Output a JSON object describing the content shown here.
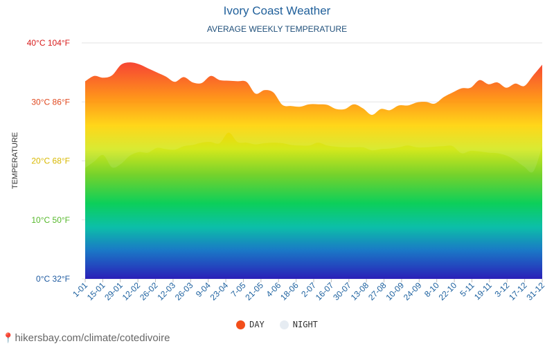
{
  "source_text": "hikersbay.com/climate/cotedivoire",
  "legend": {
    "day_label": "DAY",
    "night_label": "NIGHT"
  },
  "colors": {
    "day": "#f24e1a",
    "night": "#e6ecf2",
    "title": "#1f5f9a"
  },
  "chart_data": {
    "type": "area",
    "title": "Ivory Coast Weather",
    "subtitle": "AVERAGE WEEKLY TEMPERATURE",
    "ylabel": "TEMPERATURE",
    "ylim": [
      0,
      40
    ],
    "y_ticks": [
      {
        "value": 0,
        "label": "0°C 32°F",
        "color": "#1e5aa0"
      },
      {
        "value": 10,
        "label": "10°C 50°F",
        "color": "#55b82a"
      },
      {
        "value": 20,
        "label": "20°C 68°F",
        "color": "#d8b800"
      },
      {
        "value": 30,
        "label": "30°C 86°F",
        "color": "#e0481e"
      },
      {
        "value": 40,
        "label": "40°C 104°F",
        "color": "#d81b1b"
      }
    ],
    "x_labels": [
      "1-01",
      "15-01",
      "29-01",
      "12-02",
      "26-02",
      "12-03",
      "26-03",
      "9-04",
      "23-04",
      "7-05",
      "21-05",
      "4-06",
      "18-06",
      "2-07",
      "16-07",
      "30-07",
      "13-08",
      "27-08",
      "10-09",
      "24-09",
      "8-10",
      "22-10",
      "5-11",
      "19-11",
      "3-12",
      "17-12",
      "31-12"
    ],
    "series": [
      {
        "name": "DAY",
        "values": [
          33.5,
          34.4,
          34.1,
          34.5,
          36.3,
          36.7,
          36.4,
          35.7,
          35.0,
          34.3,
          33.4,
          34.2,
          33.3,
          33.2,
          34.4,
          33.7,
          33.6,
          33.5,
          33.4,
          31.4,
          32.0,
          31.6,
          29.5,
          29.3,
          29.2,
          29.6,
          29.6,
          29.5,
          28.8,
          28.8,
          29.6,
          28.9,
          27.8,
          28.8,
          28.6,
          29.4,
          29.4,
          29.9,
          30.0,
          29.7,
          30.8,
          31.6,
          32.3,
          32.4,
          33.7,
          33.0,
          33.3,
          32.4,
          33.1,
          32.7,
          34.5,
          36.3
        ]
      },
      {
        "name": "NIGHT",
        "values": [
          18.8,
          19.9,
          21.0,
          18.9,
          19.5,
          20.9,
          21.5,
          21.4,
          22.2,
          22.0,
          21.9,
          22.5,
          22.7,
          23.1,
          23.2,
          23.0,
          24.8,
          23.2,
          23.1,
          22.8,
          23.0,
          23.1,
          23.0,
          22.7,
          22.6,
          22.6,
          23.1,
          22.6,
          22.4,
          22.3,
          22.3,
          22.3,
          21.8,
          22.0,
          22.1,
          22.3,
          22.6,
          22.3,
          22.3,
          22.4,
          22.5,
          22.5,
          21.3,
          21.7,
          21.6,
          21.4,
          21.3,
          20.9,
          20.1,
          19.0,
          18.2,
          22.5
        ]
      }
    ]
  }
}
